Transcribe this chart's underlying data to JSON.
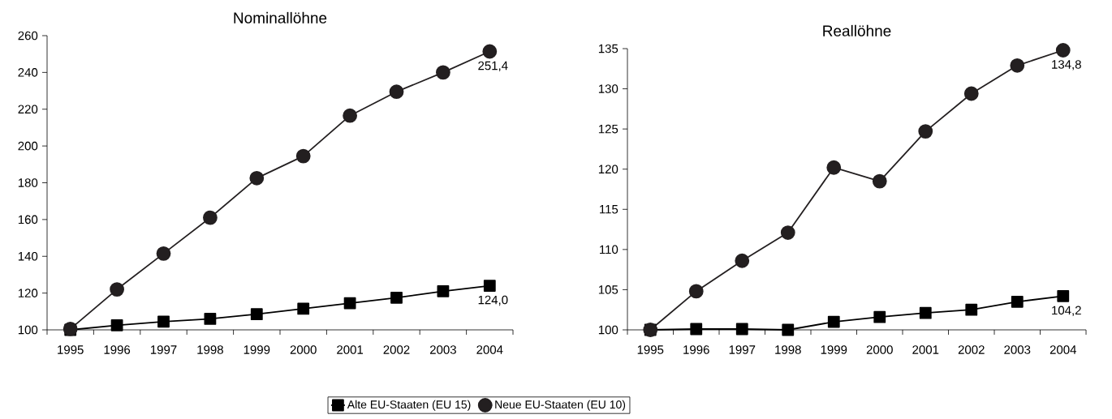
{
  "chart_data": [
    {
      "type": "line",
      "title": "Nominallöhne",
      "categories": [
        "1995",
        "1996",
        "1997",
        "1998",
        "1999",
        "2000",
        "2001",
        "2002",
        "2003",
        "2004"
      ],
      "ylim": [
        100,
        260
      ],
      "yticks": [
        100,
        120,
        140,
        160,
        180,
        200,
        220,
        240,
        260
      ],
      "legend": "bottom",
      "series": [
        {
          "name": "Alte EU-Staaten (EU 15)",
          "color": "#000000",
          "marker": "square",
          "values": [
            100,
            102.5,
            104.5,
            106,
            108.5,
            111.5,
            114.5,
            117.5,
            121,
            124.0
          ],
          "value_labels": [
            null,
            null,
            null,
            null,
            null,
            null,
            null,
            null,
            null,
            "124,0"
          ]
        },
        {
          "name": "Neue EU-Staaten (EU 10)",
          "color": "#231f20",
          "marker": "circle",
          "values": [
            100.5,
            122,
            141.5,
            161,
            182.5,
            194.5,
            216.5,
            229.5,
            240,
            251.4
          ],
          "value_labels": [
            null,
            null,
            null,
            null,
            null,
            null,
            null,
            null,
            null,
            "251,4"
          ]
        }
      ]
    },
    {
      "type": "line",
      "title": "Reallöhne",
      "categories": [
        "1995",
        "1996",
        "1997",
        "1998",
        "1999",
        "2000",
        "2001",
        "2002",
        "2003",
        "2004"
      ],
      "ylim": [
        100,
        135
      ],
      "yticks": [
        100,
        105,
        110,
        115,
        120,
        125,
        130,
        135
      ],
      "series": [
        {
          "color": "#000000",
          "marker": "square",
          "values": [
            100,
            100.1,
            100.1,
            100,
            101,
            101.6,
            102.1,
            102.5,
            103.5,
            104.2
          ],
          "value_labels": [
            null,
            null,
            null,
            null,
            null,
            null,
            null,
            null,
            null,
            "104,2"
          ]
        },
        {
          "color": "#231f20",
          "marker": "circle",
          "values": [
            100,
            104.8,
            108.6,
            112.1,
            120.2,
            118.5,
            124.7,
            129.4,
            132.9,
            134.8
          ],
          "value_labels": [
            null,
            null,
            null,
            null,
            null,
            null,
            null,
            null,
            null,
            "134,8"
          ]
        }
      ]
    }
  ]
}
